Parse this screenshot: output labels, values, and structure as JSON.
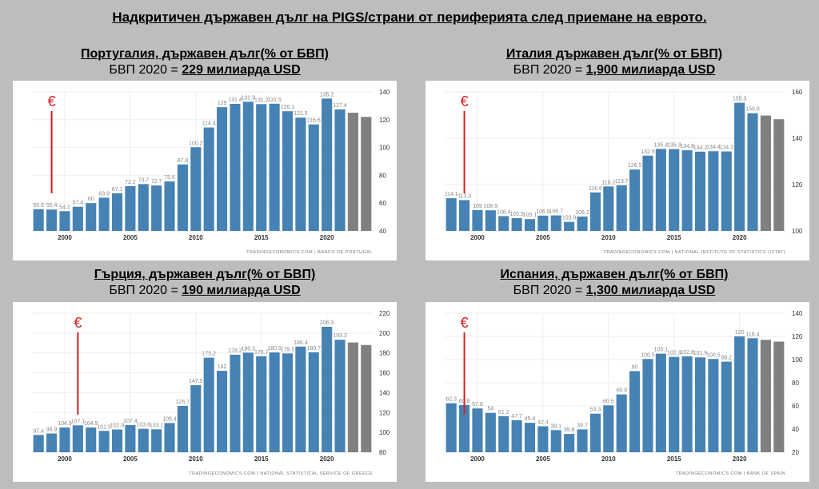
{
  "title": "Надкритичен държавен дълг на PIGS/страни от периферията след приемане на еврото.",
  "chart_data": [
    {
      "type": "bar",
      "title": "Португалия, държавен дълг(% от БВП)",
      "gdp_prefix": "БВП 2020 = ",
      "gdp_value": "229 милиарда USD",
      "source": "TRADINGECONOMICS.COM  |  BANCO DE PORTUGAL",
      "euro_label": "€",
      "euro_year": 1999,
      "x": [
        1998,
        1999,
        2000,
        2001,
        2002,
        2003,
        2004,
        2005,
        2006,
        2007,
        2008,
        2009,
        2010,
        2011,
        2012,
        2013,
        2014,
        2015,
        2016,
        2017,
        2018,
        2019,
        2020,
        2021,
        2022,
        2023
      ],
      "values": [
        55.6,
        55.4,
        54.2,
        57.4,
        60,
        63.9,
        67.1,
        72.2,
        73.7,
        72.7,
        75.6,
        87.8,
        100.2,
        114.4,
        129,
        131.4,
        132.9,
        131.2,
        131.5,
        126.1,
        121.5,
        116.6,
        135.2,
        127.4,
        125,
        122
      ],
      "forecast_from": 2022,
      "ylim": [
        40,
        140
      ],
      "yticks": [
        40,
        60,
        80,
        100,
        120,
        140
      ],
      "xticks": [
        2000,
        2005,
        2010,
        2015,
        2020
      ]
    },
    {
      "type": "bar",
      "title": "Италия държавен дълг(% от БВП)",
      "gdp_prefix": "БВП 2020 = ",
      "gdp_value": "1,900 милиарда USD",
      "source": "TRADINGECONOMICS.COM  |  NATIONAL INSTITUTE OF STATISTICS (ISTAT)",
      "euro_label": "€",
      "euro_year": 1999,
      "x": [
        1998,
        1999,
        2000,
        2001,
        2002,
        2003,
        2004,
        2005,
        2006,
        2007,
        2008,
        2009,
        2010,
        2011,
        2012,
        2013,
        2014,
        2015,
        2016,
        2017,
        2018,
        2019,
        2020,
        2021,
        2022,
        2023
      ],
      "values": [
        114.1,
        113.3,
        109,
        108.9,
        106.4,
        105.5,
        105.1,
        106.6,
        106.7,
        103.9,
        106.2,
        116.6,
        119.2,
        119.7,
        126.5,
        132.5,
        135.4,
        135.3,
        134.8,
        134.2,
        134.4,
        134.3,
        155.3,
        150.8,
        149.8,
        148.2
      ],
      "forecast_from": 2022,
      "ylim": [
        100,
        160
      ],
      "yticks": [
        100,
        120,
        140,
        160
      ],
      "xticks": [
        2000,
        2005,
        2010,
        2015,
        2020
      ]
    },
    {
      "type": "bar",
      "title": "Гърция, държавен дълг(% от БВП)",
      "gdp_prefix": "БВП 2020 = ",
      "gdp_value": "190 милиарда USD",
      "source": "TRADINGECONOMICS.COM  |  NATIONAL STATISTICAL SERVICE OF GREECE",
      "euro_label": "€",
      "euro_year": 2001,
      "x": [
        1998,
        1999,
        2000,
        2001,
        2002,
        2003,
        2004,
        2005,
        2006,
        2007,
        2008,
        2009,
        2010,
        2011,
        2012,
        2013,
        2014,
        2015,
        2016,
        2017,
        2018,
        2019,
        2020,
        2021,
        2022,
        2023
      ],
      "values": [
        97.4,
        98.9,
        104.9,
        107.1,
        104.9,
        101.5,
        102.9,
        107.4,
        103.6,
        103.1,
        109.4,
        126.7,
        147.5,
        175.2,
        162,
        178.2,
        180.3,
        176.7,
        180.5,
        179.5,
        186.4,
        180.7,
        206.3,
        193.3,
        190.5,
        188
      ],
      "forecast_from": 2022,
      "ylim": [
        80,
        220
      ],
      "yticks": [
        80,
        100,
        120,
        140,
        160,
        180,
        200,
        220
      ],
      "xticks": [
        2000,
        2005,
        2010,
        2015,
        2020
      ]
    },
    {
      "type": "bar",
      "title": "Испания, държавен дълг(% от БВП)",
      "gdp_prefix": "БВП 2020 = ",
      "gdp_value": "1,300 милиарда USD",
      "source": "TRADINGECONOMICS.COM  |  BANK OF SPAIN",
      "euro_label": "€",
      "euro_year": 1999,
      "x": [
        1998,
        1999,
        2000,
        2001,
        2002,
        2003,
        2004,
        2005,
        2006,
        2007,
        2008,
        2009,
        2010,
        2011,
        2012,
        2013,
        2014,
        2015,
        2016,
        2017,
        2018,
        2019,
        2020,
        2021,
        2022,
        2023
      ],
      "values": [
        62.3,
        60.8,
        57.8,
        54,
        51.2,
        47.7,
        45.4,
        42.4,
        39.1,
        35.8,
        39.7,
        53.3,
        60.5,
        69.9,
        90,
        100.5,
        105.1,
        102.3,
        102.8,
        101.9,
        100.5,
        98.2,
        120,
        118.4,
        117,
        115.5
      ],
      "forecast_from": 2022,
      "ylim": [
        20,
        140
      ],
      "yticks": [
        20,
        40,
        60,
        80,
        100,
        120,
        140
      ],
      "xticks": [
        2000,
        2005,
        2010,
        2015,
        2020
      ]
    }
  ],
  "colors": {
    "bar": "#4682b4",
    "forecast": "#808080",
    "euro": "#d81e1e",
    "label": "#888888"
  }
}
